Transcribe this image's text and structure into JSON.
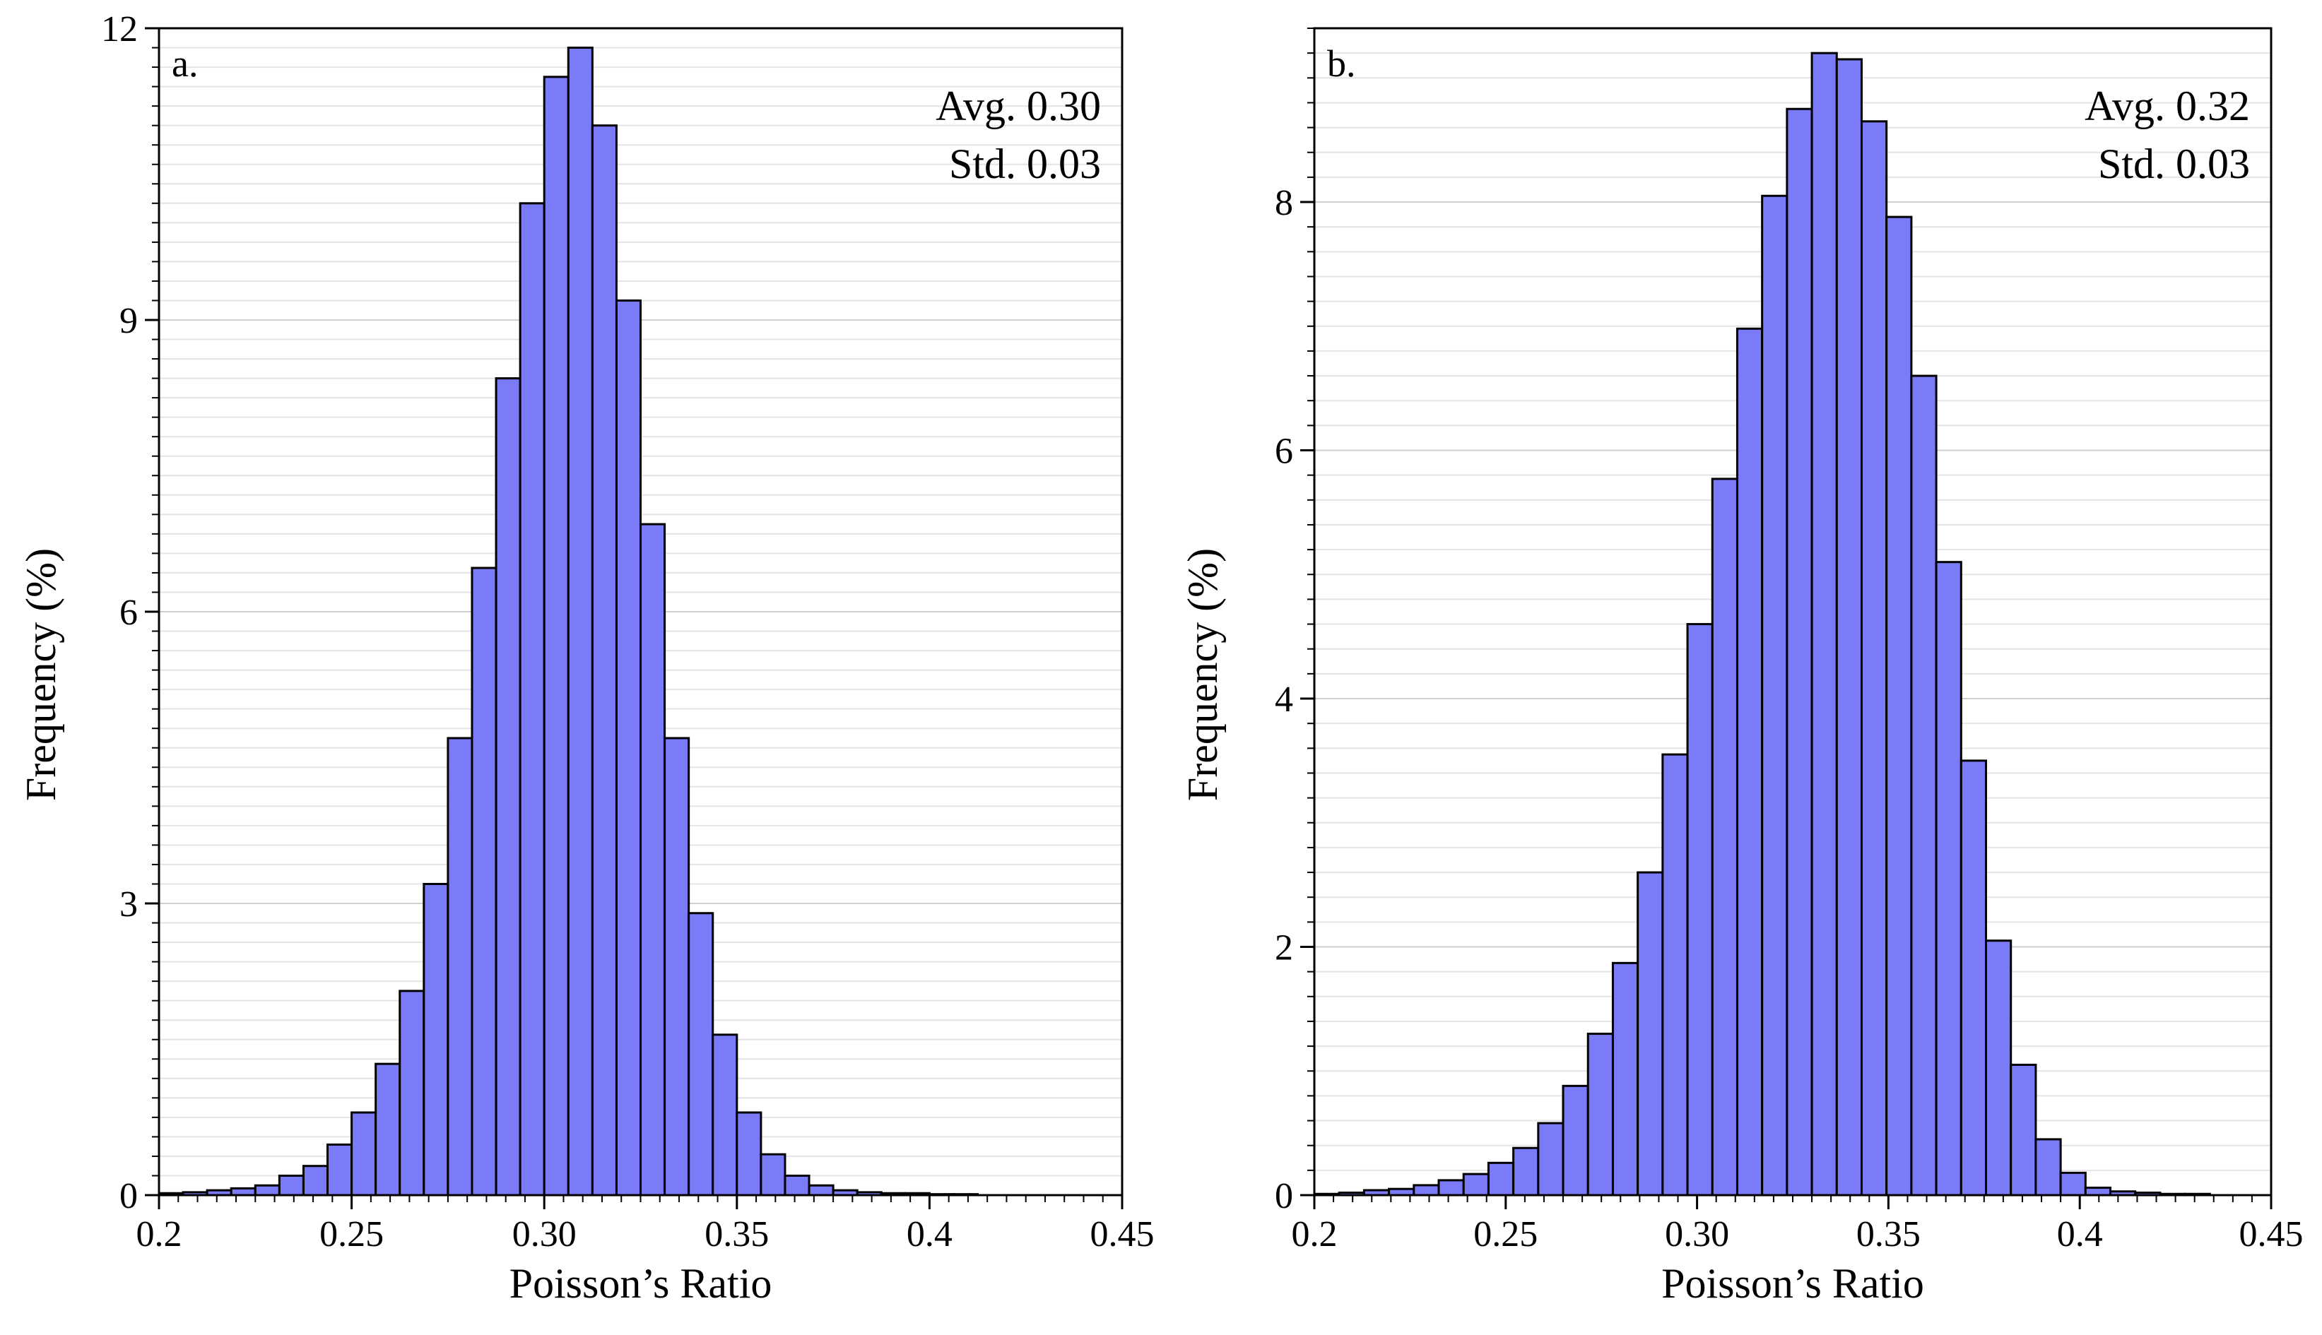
{
  "figure": {
    "bar_fill": "#7b7bf7",
    "bar_stroke": "#000000",
    "grid_color": "#e4e4e4",
    "axis_color": "#000000"
  },
  "chart_data": [
    {
      "type": "bar",
      "panel_label": "a.",
      "title": "",
      "xlabel": "Poisson’s Ratio",
      "ylabel": "Frequency (%)",
      "xlim": [
        0.2,
        0.45
      ],
      "ylim": [
        0,
        12
      ],
      "x_ticks": [
        0.2,
        0.25,
        0.3,
        0.35,
        0.4,
        0.45
      ],
      "x_tick_labels": [
        "0.2",
        "0.25",
        "0.30",
        "0.35",
        "0.4",
        "0.45"
      ],
      "y_ticks": [
        0,
        3,
        6,
        9,
        12
      ],
      "y_tick_labels": [
        "0",
        "3",
        "6",
        "9",
        "12"
      ],
      "y_minor_step": 0.2,
      "x_minor_step": 0.005,
      "bin_width": 0.00625,
      "bin_start": 0.2,
      "values": [
        0.02,
        0.03,
        0.05,
        0.07,
        0.1,
        0.2,
        0.3,
        0.52,
        0.85,
        1.35,
        2.1,
        3.2,
        4.7,
        6.45,
        8.4,
        10.2,
        11.5,
        11.8,
        11.0,
        9.2,
        6.9,
        4.7,
        2.9,
        1.65,
        0.85,
        0.42,
        0.2,
        0.1,
        0.05,
        0.03,
        0.02,
        0.02,
        0.01,
        0.01
      ],
      "stats": {
        "avg": "Avg. 0.30",
        "std": "Std. 0.03"
      }
    },
    {
      "type": "bar",
      "panel_label": "b.",
      "title": "",
      "xlabel": "Poisson’s Ratio",
      "ylabel": "Frequency (%)",
      "xlim": [
        0.2,
        0.45
      ],
      "ylim": [
        0,
        9.4
      ],
      "x_ticks": [
        0.2,
        0.25,
        0.3,
        0.35,
        0.4,
        0.45
      ],
      "x_tick_labels": [
        "0.2",
        "0.25",
        "0.30",
        "0.35",
        "0.4",
        "0.45"
      ],
      "y_ticks": [
        0,
        2,
        4,
        6,
        8
      ],
      "y_tick_labels": [
        "0",
        "2",
        "4",
        "6",
        "8"
      ],
      "y_minor_step": 0.2,
      "x_minor_step": 0.005,
      "bin_width": 0.0065,
      "bin_start": 0.2,
      "values": [
        0.01,
        0.02,
        0.04,
        0.05,
        0.08,
        0.12,
        0.17,
        0.26,
        0.38,
        0.58,
        0.88,
        1.3,
        1.87,
        2.6,
        3.55,
        4.6,
        5.77,
        6.98,
        8.05,
        8.75,
        9.2,
        9.15,
        8.65,
        7.88,
        6.6,
        5.1,
        3.5,
        2.05,
        1.05,
        0.45,
        0.18,
        0.06,
        0.03,
        0.02,
        0.01,
        0.01
      ],
      "stats": {
        "avg": "Avg. 0.32",
        "std": "Std. 0.03"
      }
    }
  ]
}
